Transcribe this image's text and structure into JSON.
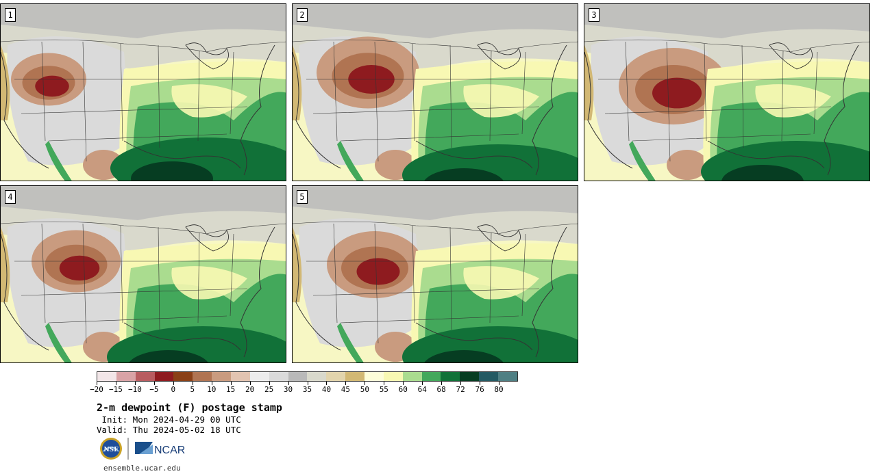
{
  "panels": [
    {
      "label": "1"
    },
    {
      "label": "2"
    },
    {
      "label": "3"
    },
    {
      "label": "4"
    },
    {
      "label": "5"
    }
  ],
  "colorbar": {
    "colors": [
      "#f2e6e8",
      "#d9a3a6",
      "#b85c60",
      "#8e1b1f",
      "#8a4016",
      "#b07452",
      "#c99b7f",
      "#e2c4b1",
      "#ececec",
      "#dadada",
      "#b9b9b9",
      "#d9d9cc",
      "#e2d4ac",
      "#d2b874",
      "#fdfdd9",
      "#f8f8b3",
      "#aadc8f",
      "#43a85b",
      "#117138",
      "#063d22",
      "#245a63",
      "#4f7f83"
    ],
    "ticks": [
      "−20",
      "−15",
      "−10",
      "−5",
      "0",
      "5",
      "10",
      "15",
      "20",
      "25",
      "30",
      "35",
      "40",
      "45",
      "50",
      "55",
      "60",
      "64",
      "68",
      "72",
      "76",
      "80"
    ]
  },
  "title": "2-m dewpoint (F) postage stamp",
  "init": " Init: Mon 2024-04-29 00 UTC",
  "valid": "Valid: Thu 2024-05-02 18 UTC",
  "logos": {
    "nsf": "NSF",
    "ncar": "NCAR"
  },
  "footer": "ensemble.ucar.edu"
}
